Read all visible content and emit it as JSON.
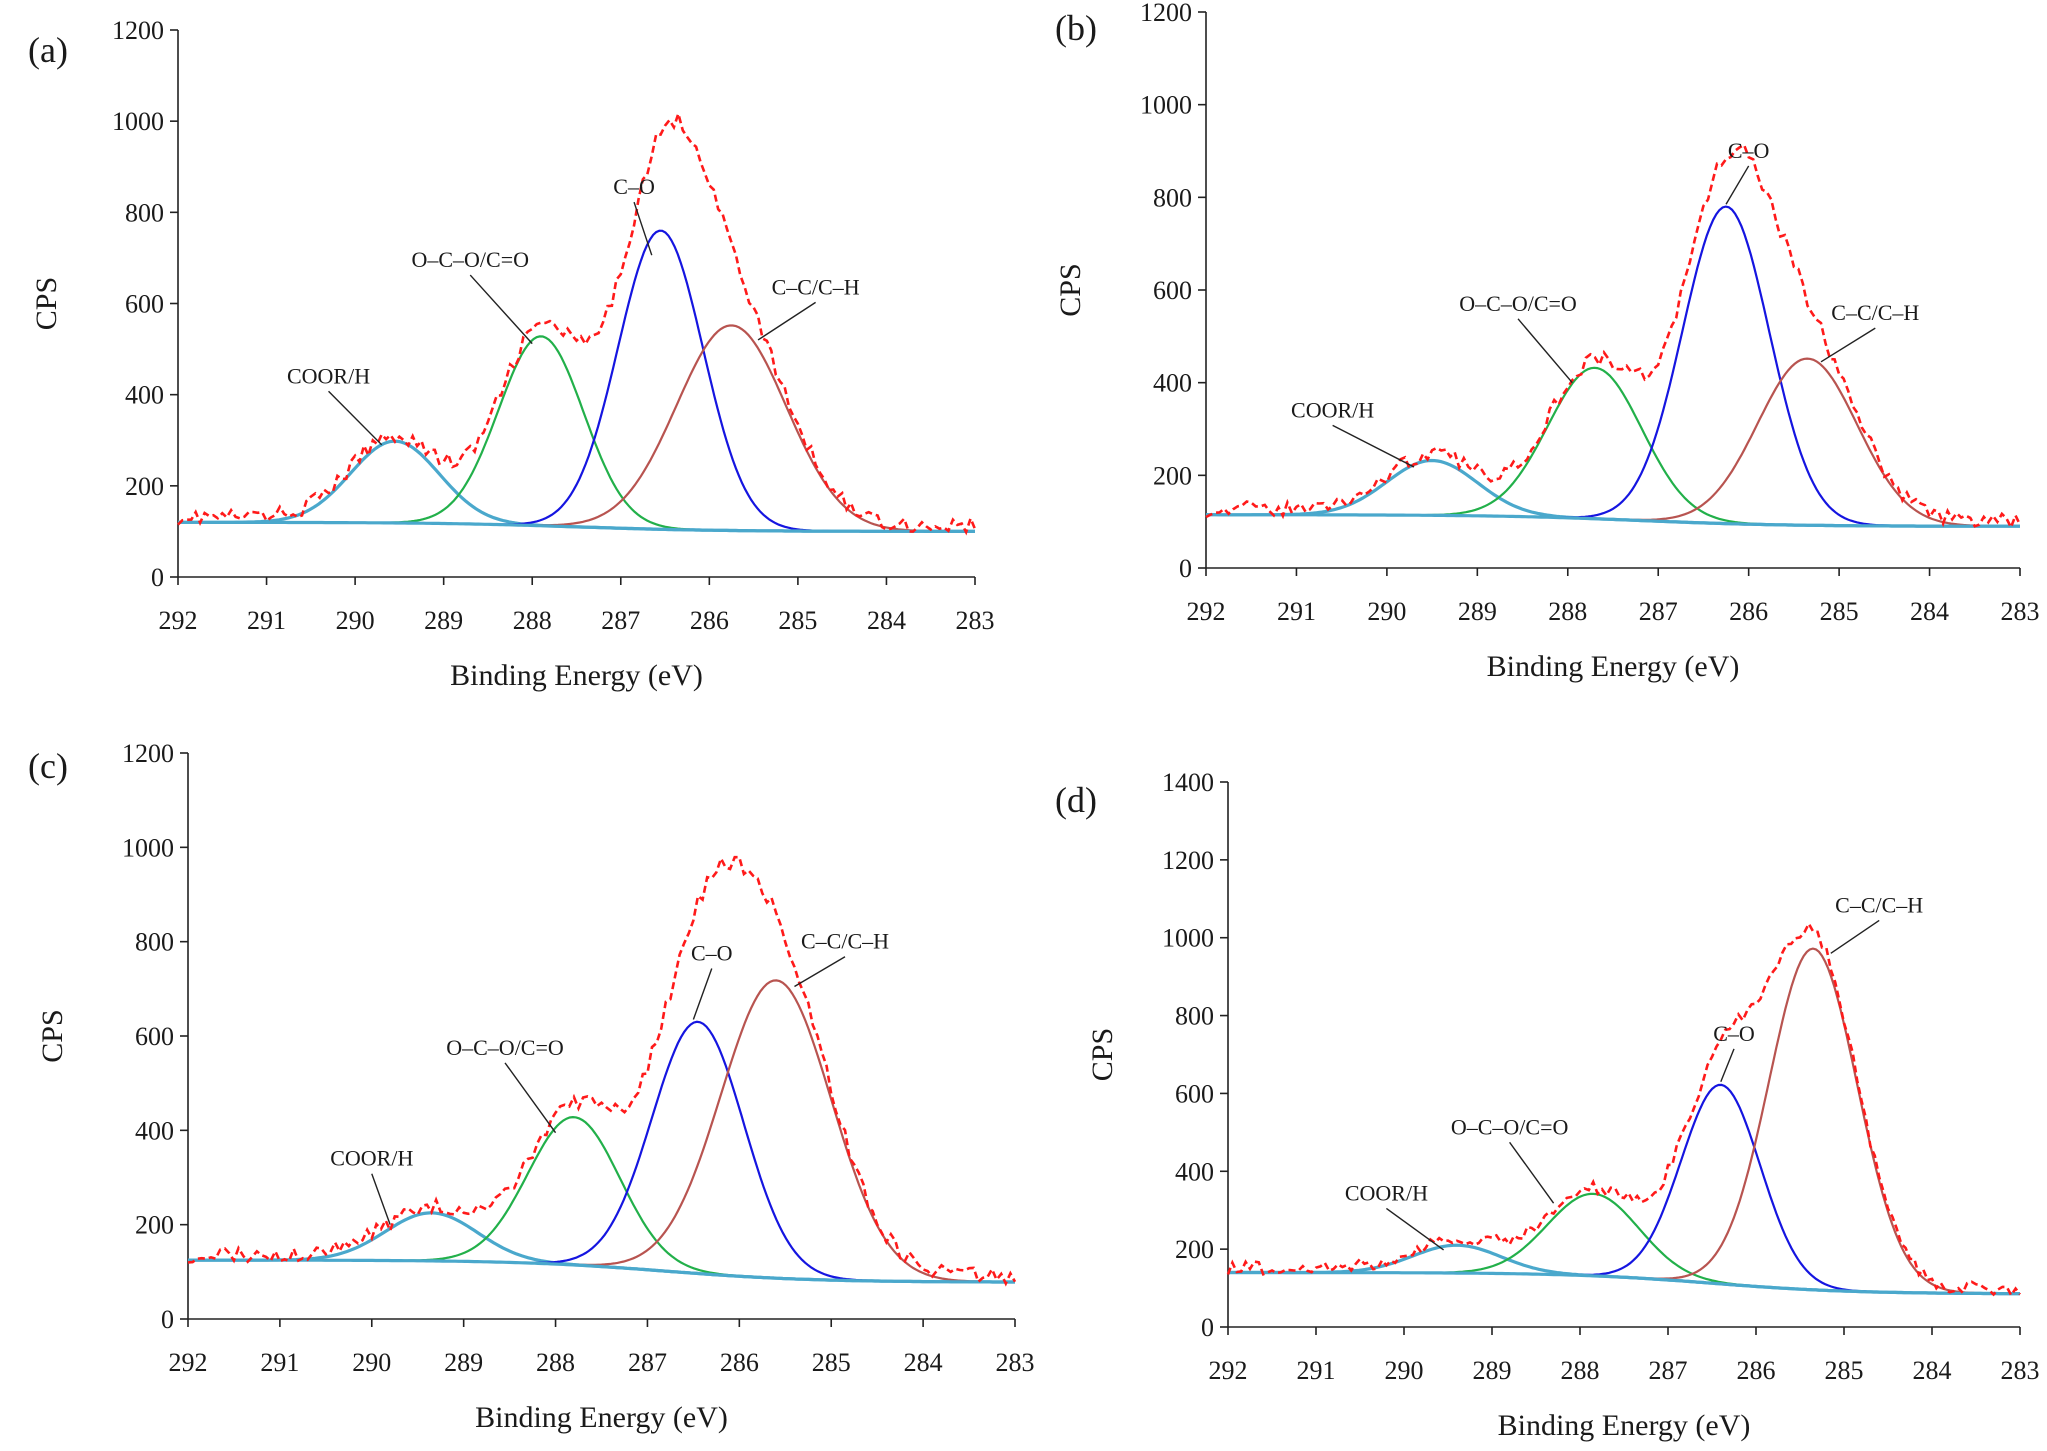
{
  "colors": {
    "envelope": "#ff1a1a",
    "coorh": "#4aa8cc",
    "ocoo": "#22b04a",
    "co": "#1515e0",
    "cc": "#b85450",
    "baseline": "#4aa8cc"
  },
  "chart_data": [
    {
      "type": "line",
      "panel_label": "(a)",
      "xlabel": "Binding Energy (eV)",
      "ylabel": "CPS",
      "xlim": [
        292,
        283
      ],
      "ylim": [
        0,
        1200
      ],
      "xticks": [
        292,
        291,
        290,
        289,
        288,
        287,
        286,
        285,
        284,
        283
      ],
      "yticks": [
        0,
        200,
        400,
        600,
        800,
        1000,
        1200
      ],
      "baseline": {
        "start": 120,
        "end": 100,
        "center": 287.5
      },
      "series": [
        {
          "name": "COOR/H",
          "center": 289.55,
          "peak": 298,
          "sigma": 0.5
        },
        {
          "name": "O–C–O/C=O",
          "center": 287.9,
          "peak": 528,
          "sigma": 0.48
        },
        {
          "name": "C–O",
          "center": 286.55,
          "peak": 760,
          "sigma": 0.48
        },
        {
          "name": "C–C/C–H",
          "center": 285.75,
          "peak": 552,
          "sigma": 0.62
        }
      ],
      "annotations": [
        {
          "text": "COOR/H",
          "label_at": [
            290.3,
            425
          ],
          "point_at": [
            289.7,
            290
          ]
        },
        {
          "text": "O–C–O/C=O",
          "label_at": [
            288.7,
            680
          ],
          "point_at": [
            288.0,
            512
          ]
        },
        {
          "text": "C–O",
          "label_at": [
            286.85,
            840
          ],
          "point_at": [
            286.65,
            706
          ]
        },
        {
          "text": "C–C/C–H",
          "label_at": [
            284.8,
            620
          ],
          "point_at": [
            285.45,
            520
          ]
        }
      ]
    },
    {
      "type": "line",
      "panel_label": "(b)",
      "xlabel": "Binding Energy (eV)",
      "ylabel": "CPS",
      "xlim": [
        292,
        283
      ],
      "ylim": [
        0,
        1200
      ],
      "xticks": [
        292,
        291,
        290,
        289,
        288,
        287,
        286,
        285,
        284,
        283
      ],
      "yticks": [
        0,
        200,
        400,
        600,
        800,
        1000,
        1200
      ],
      "baseline": {
        "start": 115,
        "end": 90,
        "center": 287.2
      },
      "series": [
        {
          "name": "COOR/H",
          "center": 289.5,
          "peak": 232,
          "sigma": 0.5
        },
        {
          "name": "O–C–O/C=O",
          "center": 287.7,
          "peak": 432,
          "sigma": 0.52
        },
        {
          "name": "C–O",
          "center": 286.25,
          "peak": 780,
          "sigma": 0.48
        },
        {
          "name": "C–C/C–H",
          "center": 285.35,
          "peak": 452,
          "sigma": 0.55
        }
      ],
      "annotations": [
        {
          "text": "COOR/H",
          "label_at": [
            290.6,
            325
          ],
          "point_at": [
            289.7,
            218
          ]
        },
        {
          "text": "O–C–O/C=O",
          "label_at": [
            288.55,
            555
          ],
          "point_at": [
            287.95,
            400
          ]
        },
        {
          "text": "C–O",
          "label_at": [
            286.0,
            885
          ],
          "point_at": [
            286.25,
            785
          ]
        },
        {
          "text": "C–C/C–H",
          "label_at": [
            284.6,
            535
          ],
          "point_at": [
            285.2,
            445
          ]
        }
      ]
    },
    {
      "type": "line",
      "panel_label": "(c)",
      "xlabel": "Binding Energy (eV)",
      "ylabel": "CPS",
      "xlim": [
        292,
        283
      ],
      "ylim": [
        0,
        1200
      ],
      "xticks": [
        292,
        291,
        290,
        289,
        288,
        287,
        286,
        285,
        284,
        283
      ],
      "yticks": [
        0,
        200,
        400,
        600,
        800,
        1000,
        1200
      ],
      "baseline": {
        "start": 125,
        "end": 78,
        "center": 286.8
      },
      "series": [
        {
          "name": "COOR/H",
          "center": 289.35,
          "peak": 225,
          "sigma": 0.5
        },
        {
          "name": "O–C–O/C=O",
          "center": 287.8,
          "peak": 428,
          "sigma": 0.5
        },
        {
          "name": "C–O",
          "center": 286.45,
          "peak": 630,
          "sigma": 0.5
        },
        {
          "name": "C–C/C–H",
          "center": 285.6,
          "peak": 718,
          "sigma": 0.6
        }
      ],
      "annotations": [
        {
          "text": "COOR/H",
          "label_at": [
            290.0,
            325
          ],
          "point_at": [
            289.8,
            200
          ]
        },
        {
          "text": "O–C–O/C=O",
          "label_at": [
            288.55,
            560
          ],
          "point_at": [
            288.0,
            395
          ]
        },
        {
          "text": "C–O",
          "label_at": [
            286.3,
            760
          ],
          "point_at": [
            286.5,
            635
          ]
        },
        {
          "text": "C–C/C–H",
          "label_at": [
            284.85,
            785
          ],
          "point_at": [
            285.4,
            705
          ]
        }
      ]
    },
    {
      "type": "line",
      "panel_label": "(d)",
      "xlabel": "Binding Energy (eV)",
      "ylabel": "CPS",
      "xlim": [
        292,
        283
      ],
      "ylim": [
        0,
        1400
      ],
      "xticks": [
        292,
        291,
        290,
        289,
        288,
        287,
        286,
        285,
        284,
        283
      ],
      "yticks": [
        0,
        200,
        400,
        600,
        800,
        1000,
        1200,
        1400
      ],
      "baseline": {
        "start": 140,
        "end": 85,
        "center": 286.5
      },
      "series": [
        {
          "name": "COOR/H",
          "center": 289.4,
          "peak": 210,
          "sigma": 0.5
        },
        {
          "name": "O–C–O/C=O",
          "center": 287.85,
          "peak": 342,
          "sigma": 0.52
        },
        {
          "name": "C–O",
          "center": 286.4,
          "peak": 622,
          "sigma": 0.45
        },
        {
          "name": "C–C/C–H",
          "center": 285.35,
          "peak": 972,
          "sigma": 0.5
        }
      ],
      "annotations": [
        {
          "text": "COOR/H",
          "label_at": [
            290.2,
            325
          ],
          "point_at": [
            289.55,
            198
          ]
        },
        {
          "text": "O–C–O/C=O",
          "label_at": [
            288.8,
            495
          ],
          "point_at": [
            288.3,
            318
          ]
        },
        {
          "text": "C–O",
          "label_at": [
            286.25,
            735
          ],
          "point_at": [
            286.4,
            630
          ]
        },
        {
          "text": "C–C/C–H",
          "label_at": [
            284.6,
            1065
          ],
          "point_at": [
            285.15,
            960
          ]
        }
      ]
    }
  ]
}
